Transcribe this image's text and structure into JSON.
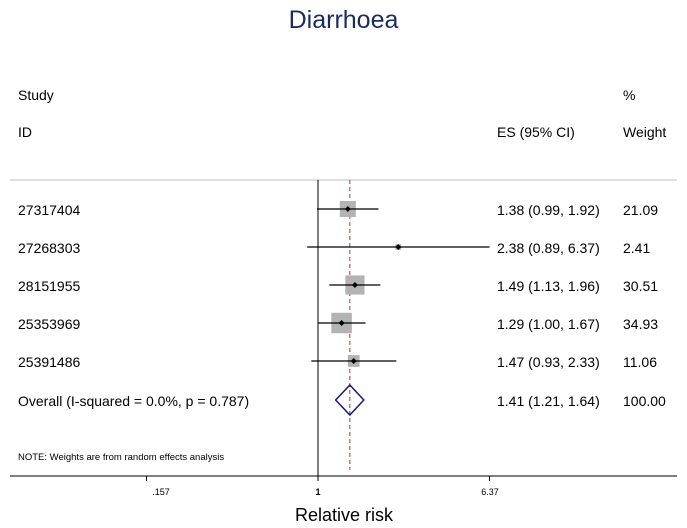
{
  "chart_data": {
    "type": "forest",
    "title": "Diarrhoea",
    "xlabel": "Relative risk",
    "x_scale": "log",
    "reference_line": 1,
    "overall_line": 1.41,
    "xticks": [
      {
        "value": 0.157,
        "label": ".157"
      },
      {
        "value": 1,
        "label": "1"
      },
      {
        "value": 6.37,
        "label": "6.37"
      }
    ],
    "headers": {
      "study_line1": "Study",
      "study_line2": "ID",
      "es": "ES (95% CI)",
      "weight_line1": "%",
      "weight_line2": "Weight"
    },
    "studies": [
      {
        "id": "27317404",
        "es": 1.38,
        "lo": 0.99,
        "hi": 1.92,
        "weight": 21.09,
        "es_text": "1.38 (0.99, 1.92)",
        "weight_text": "21.09"
      },
      {
        "id": "27268303",
        "es": 2.38,
        "lo": 0.89,
        "hi": 6.37,
        "weight": 2.41,
        "es_text": "2.38 (0.89, 6.37)",
        "weight_text": "2.41"
      },
      {
        "id": "28151955",
        "es": 1.49,
        "lo": 1.13,
        "hi": 1.96,
        "weight": 30.51,
        "es_text": "1.49 (1.13, 1.96)",
        "weight_text": "30.51"
      },
      {
        "id": "25353969",
        "es": 1.29,
        "lo": 1.0,
        "hi": 1.67,
        "weight": 34.93,
        "es_text": "1.29 (1.00, 1.67)",
        "weight_text": "34.93"
      },
      {
        "id": "25391486",
        "es": 1.47,
        "lo": 0.93,
        "hi": 2.33,
        "weight": 11.06,
        "es_text": "1.47 (0.93, 2.33)",
        "weight_text": "11.06"
      }
    ],
    "overall": {
      "label": "Overall  (I-squared = 0.0%, p = 0.787)",
      "es": 1.41,
      "lo": 1.21,
      "hi": 1.64,
      "es_text": "1.41 (1.21, 1.64)",
      "weight_text": "100.00"
    },
    "note": "NOTE: Weights are from random effects analysis",
    "colors": {
      "title": "#1e2a5e",
      "box": "#b3b3b3",
      "diamond": "#1a1a7a",
      "overall_line": "#b03040",
      "divider": "#bfbfbf"
    }
  }
}
